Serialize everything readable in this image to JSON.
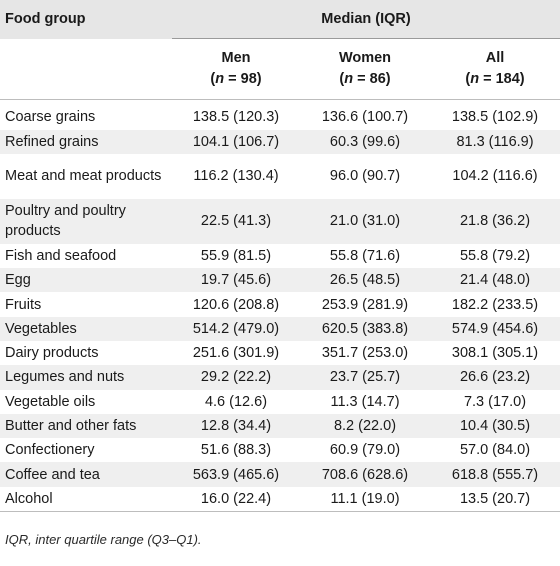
{
  "header": {
    "food_group": "Food group",
    "median_iqr": "Median (IQR)",
    "columns": [
      {
        "label": "Men",
        "n_symbol": "n",
        "n_value": " = 98)"
      },
      {
        "label": "Women",
        "n_symbol": "n",
        "n_value": " = 86)"
      },
      {
        "label": "All",
        "n_symbol": "n",
        "n_value": " = 184)"
      }
    ]
  },
  "rows": [
    {
      "food": "Coarse grains",
      "men": "138.5 (120.3)",
      "women": "136.6 (100.7)",
      "all": "138.5 (102.9)"
    },
    {
      "food": "Refined grains",
      "men": "104.1 (106.7)",
      "women": "60.3 (99.6)",
      "all": "81.3 (116.9)"
    },
    {
      "food": "Meat and meat products",
      "men": "116.2 (130.4)",
      "women": "96.0 (90.7)",
      "all": "104.2 (116.6)"
    },
    {
      "food": "Poultry and poultry products",
      "men": "22.5 (41.3)",
      "women": "21.0 (31.0)",
      "all": "21.8 (36.2)"
    },
    {
      "food": "Fish and seafood",
      "men": "55.9 (81.5)",
      "women": "55.8 (71.6)",
      "all": "55.8 (79.2)"
    },
    {
      "food": "Egg",
      "men": "19.7 (45.6)",
      "women": "26.5 (48.5)",
      "all": "21.4 (48.0)"
    },
    {
      "food": "Fruits",
      "men": "120.6 (208.8)",
      "women": "253.9 (281.9)",
      "all": "182.2 (233.5)"
    },
    {
      "food": "Vegetables",
      "men": "514.2 (479.0)",
      "women": "620.5 (383.8)",
      "all": "574.9 (454.6)"
    },
    {
      "food": "Dairy products",
      "men": "251.6 (301.9)",
      "women": "351.7 (253.0)",
      "all": "308.1 (305.1)"
    },
    {
      "food": "Legumes and nuts",
      "men": "29.2 (22.2)",
      "women": "23.7 (25.7)",
      "all": "26.6 (23.2)"
    },
    {
      "food": "Vegetable oils",
      "men": "4.6 (12.6)",
      "women": "11.3 (14.7)",
      "all": "7.3 (17.0)"
    },
    {
      "food": "Butter and other fats",
      "men": "12.8 (34.4)",
      "women": "8.2 (22.0)",
      "all": "10.4 (30.5)"
    },
    {
      "food": "Confectionery",
      "men": "51.6 (88.3)",
      "women": "60.9 (79.0)",
      "all": "57.0 (84.0)"
    },
    {
      "food": "Coffee and tea",
      "men": "563.9 (465.6)",
      "women": "708.6 (628.6)",
      "all": "618.8 (555.7)"
    },
    {
      "food": "Alcohol",
      "men": "16.0 (22.4)",
      "women": "11.1 (19.0)",
      "all": "13.5 (20.7)"
    }
  ],
  "footnote": "IQR, inter quartile range (Q3–Q1)."
}
